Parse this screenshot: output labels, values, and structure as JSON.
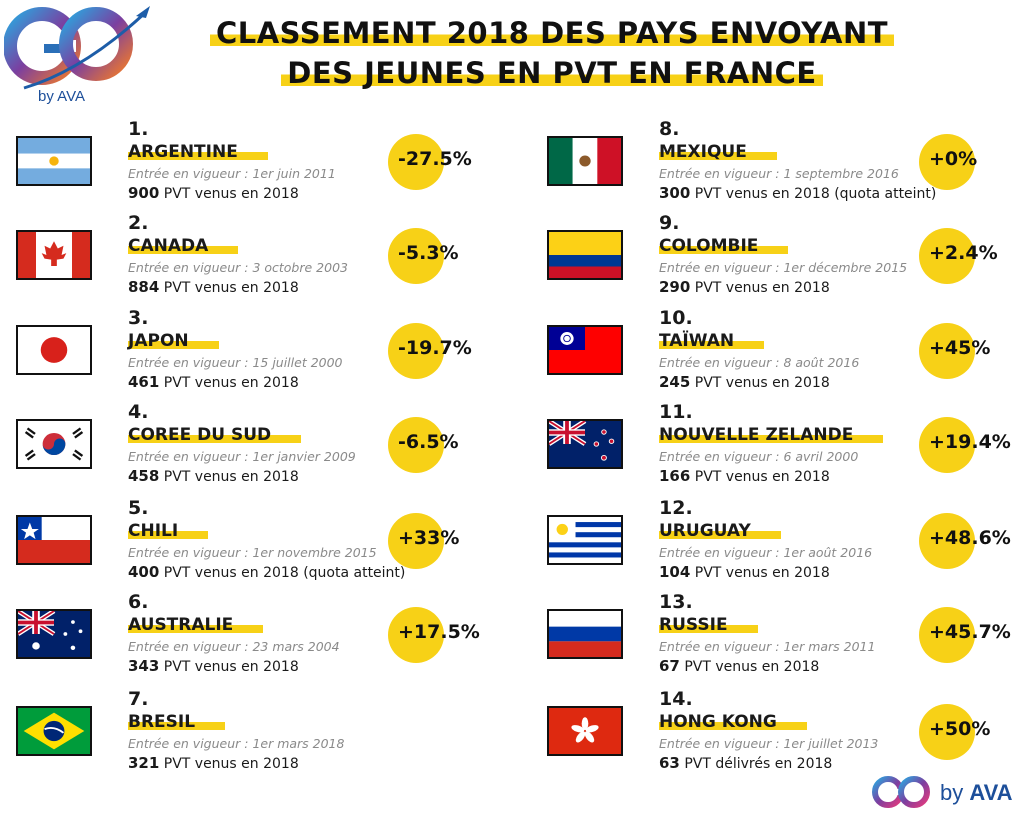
{
  "header": {
    "logo_text": "by AVA",
    "title_line1": "CLASSEMENT 2018 DES PAYS ENVOYANT",
    "title_line2": "DES JEUNES EN PVT EN FRANCE"
  },
  "unit_suffix_default": "PVT venus en 2018",
  "entries": [
    {
      "rank": "1.",
      "name": "ARGENTINE",
      "since": "Entrée en vigueur : 1er juin 2011",
      "count": "900",
      "suffix": "PVT venus en 2018",
      "change": "-27.5%",
      "flag": "argentina-flag"
    },
    {
      "rank": "2.",
      "name": "CANADA",
      "since": "Entrée en vigueur : 3 octobre 2003",
      "count": "884",
      "suffix": "PVT venus en 2018",
      "change": "-5.3%",
      "flag": "canada-flag"
    },
    {
      "rank": "3.",
      "name": "JAPON",
      "since": "Entrée en vigueur : 15 juillet 2000",
      "count": "461",
      "suffix": "PVT venus en 2018",
      "change": "-19.7%",
      "flag": "japan-flag"
    },
    {
      "rank": "4.",
      "name": "COREE DU SUD",
      "since": "Entrée en vigueur : 1er janvier 2009",
      "count": "458",
      "suffix": "PVT venus en 2018",
      "change": "-6.5%",
      "flag": "south-korea-flag"
    },
    {
      "rank": "5.",
      "name": "CHILI",
      "since": "Entrée en vigueur : 1er novembre 2015",
      "count": "400",
      "suffix": "PVT venus en 2018 (quota atteint)",
      "change": "+33%",
      "flag": "chile-flag"
    },
    {
      "rank": "6.",
      "name": "AUSTRALIE",
      "since": "Entrée en vigueur : 23 mars 2004",
      "count": "343",
      "suffix": "PVT venus en 2018",
      "change": "+17.5%",
      "flag": "australia-flag"
    },
    {
      "rank": "7.",
      "name": "BRESIL",
      "since": "Entrée en vigueur : 1er mars 2018",
      "count": "321",
      "suffix": "PVT venus en 2018",
      "change": "",
      "flag": "brazil-flag"
    },
    {
      "rank": "8.",
      "name": "MEXIQUE",
      "since": "Entrée en vigueur : 1 septembre 2016",
      "count": "300",
      "suffix": "PVT venus en 2018 (quota atteint)",
      "change": "+0%",
      "flag": "mexico-flag"
    },
    {
      "rank": "9.",
      "name": "COLOMBIE",
      "since": "Entrée en vigueur : 1er décembre 2015",
      "count": "290",
      "suffix": "PVT venus en 2018",
      "change": "+2.4%",
      "flag": "colombia-flag"
    },
    {
      "rank": "10.",
      "name": "TAÏWAN",
      "since": "Entrée en vigueur : 8 août 2016",
      "count": "245",
      "suffix": "PVT venus en 2018",
      "change": "+45%",
      "flag": "taiwan-flag"
    },
    {
      "rank": "11.",
      "name": "NOUVELLE ZELANDE",
      "since": "Entrée en vigueur : 6 avril 2000",
      "count": "166",
      "suffix": "PVT venus en 2018",
      "change": "+19.4%",
      "flag": "new-zealand-flag"
    },
    {
      "rank": "12.",
      "name": "URUGUAY",
      "since": "Entrée en vigueur : 1er août 2016",
      "count": "104",
      "suffix": "PVT venus en 2018",
      "change": "+48.6%",
      "flag": "uruguay-flag"
    },
    {
      "rank": "13.",
      "name": "RUSSIE",
      "since": "Entrée en vigueur : 1er mars 2011",
      "count": "67",
      "suffix": "PVT venus en 2018",
      "change": "+45.7%",
      "flag": "russia-flag"
    },
    {
      "rank": "14.",
      "name": "HONG KONG",
      "since": "Entrée en vigueur : 1er juillet 2013",
      "count": "63",
      "suffix": "PVT délivrés en 2018",
      "change": "+50%",
      "flag": "hong-kong-flag"
    }
  ],
  "footer": {
    "logo_text_by": "by",
    "logo_text_ava": "AVA"
  },
  "colors": {
    "accent": "#f7d117",
    "brand_blue": "#1d4f9a",
    "brand_pink": "#e53a7d"
  }
}
